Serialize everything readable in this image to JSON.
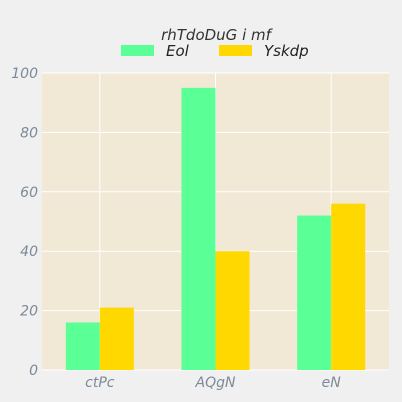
{
  "chart_data": {
    "type": "bar",
    "title": "rhTdoDuG i mf",
    "xlabel": "",
    "ylabel": "",
    "categories": [
      "ctPc",
      "AQgN",
      "eN"
    ],
    "series": [
      {
        "name": "Eol",
        "values": [
          16,
          95,
          52
        ],
        "color": "#5aff96"
      },
      {
        "name": "Yskdp",
        "values": [
          21,
          40,
          56
        ],
        "color": "#ffd800"
      }
    ],
    "ylim": [
      0,
      100
    ],
    "yticks": [
      0,
      20,
      40,
      60,
      80,
      100
    ],
    "grid": true,
    "legend_position": "top-center",
    "plot_background": "#f1e8d5",
    "grid_color": "#ffffff"
  }
}
